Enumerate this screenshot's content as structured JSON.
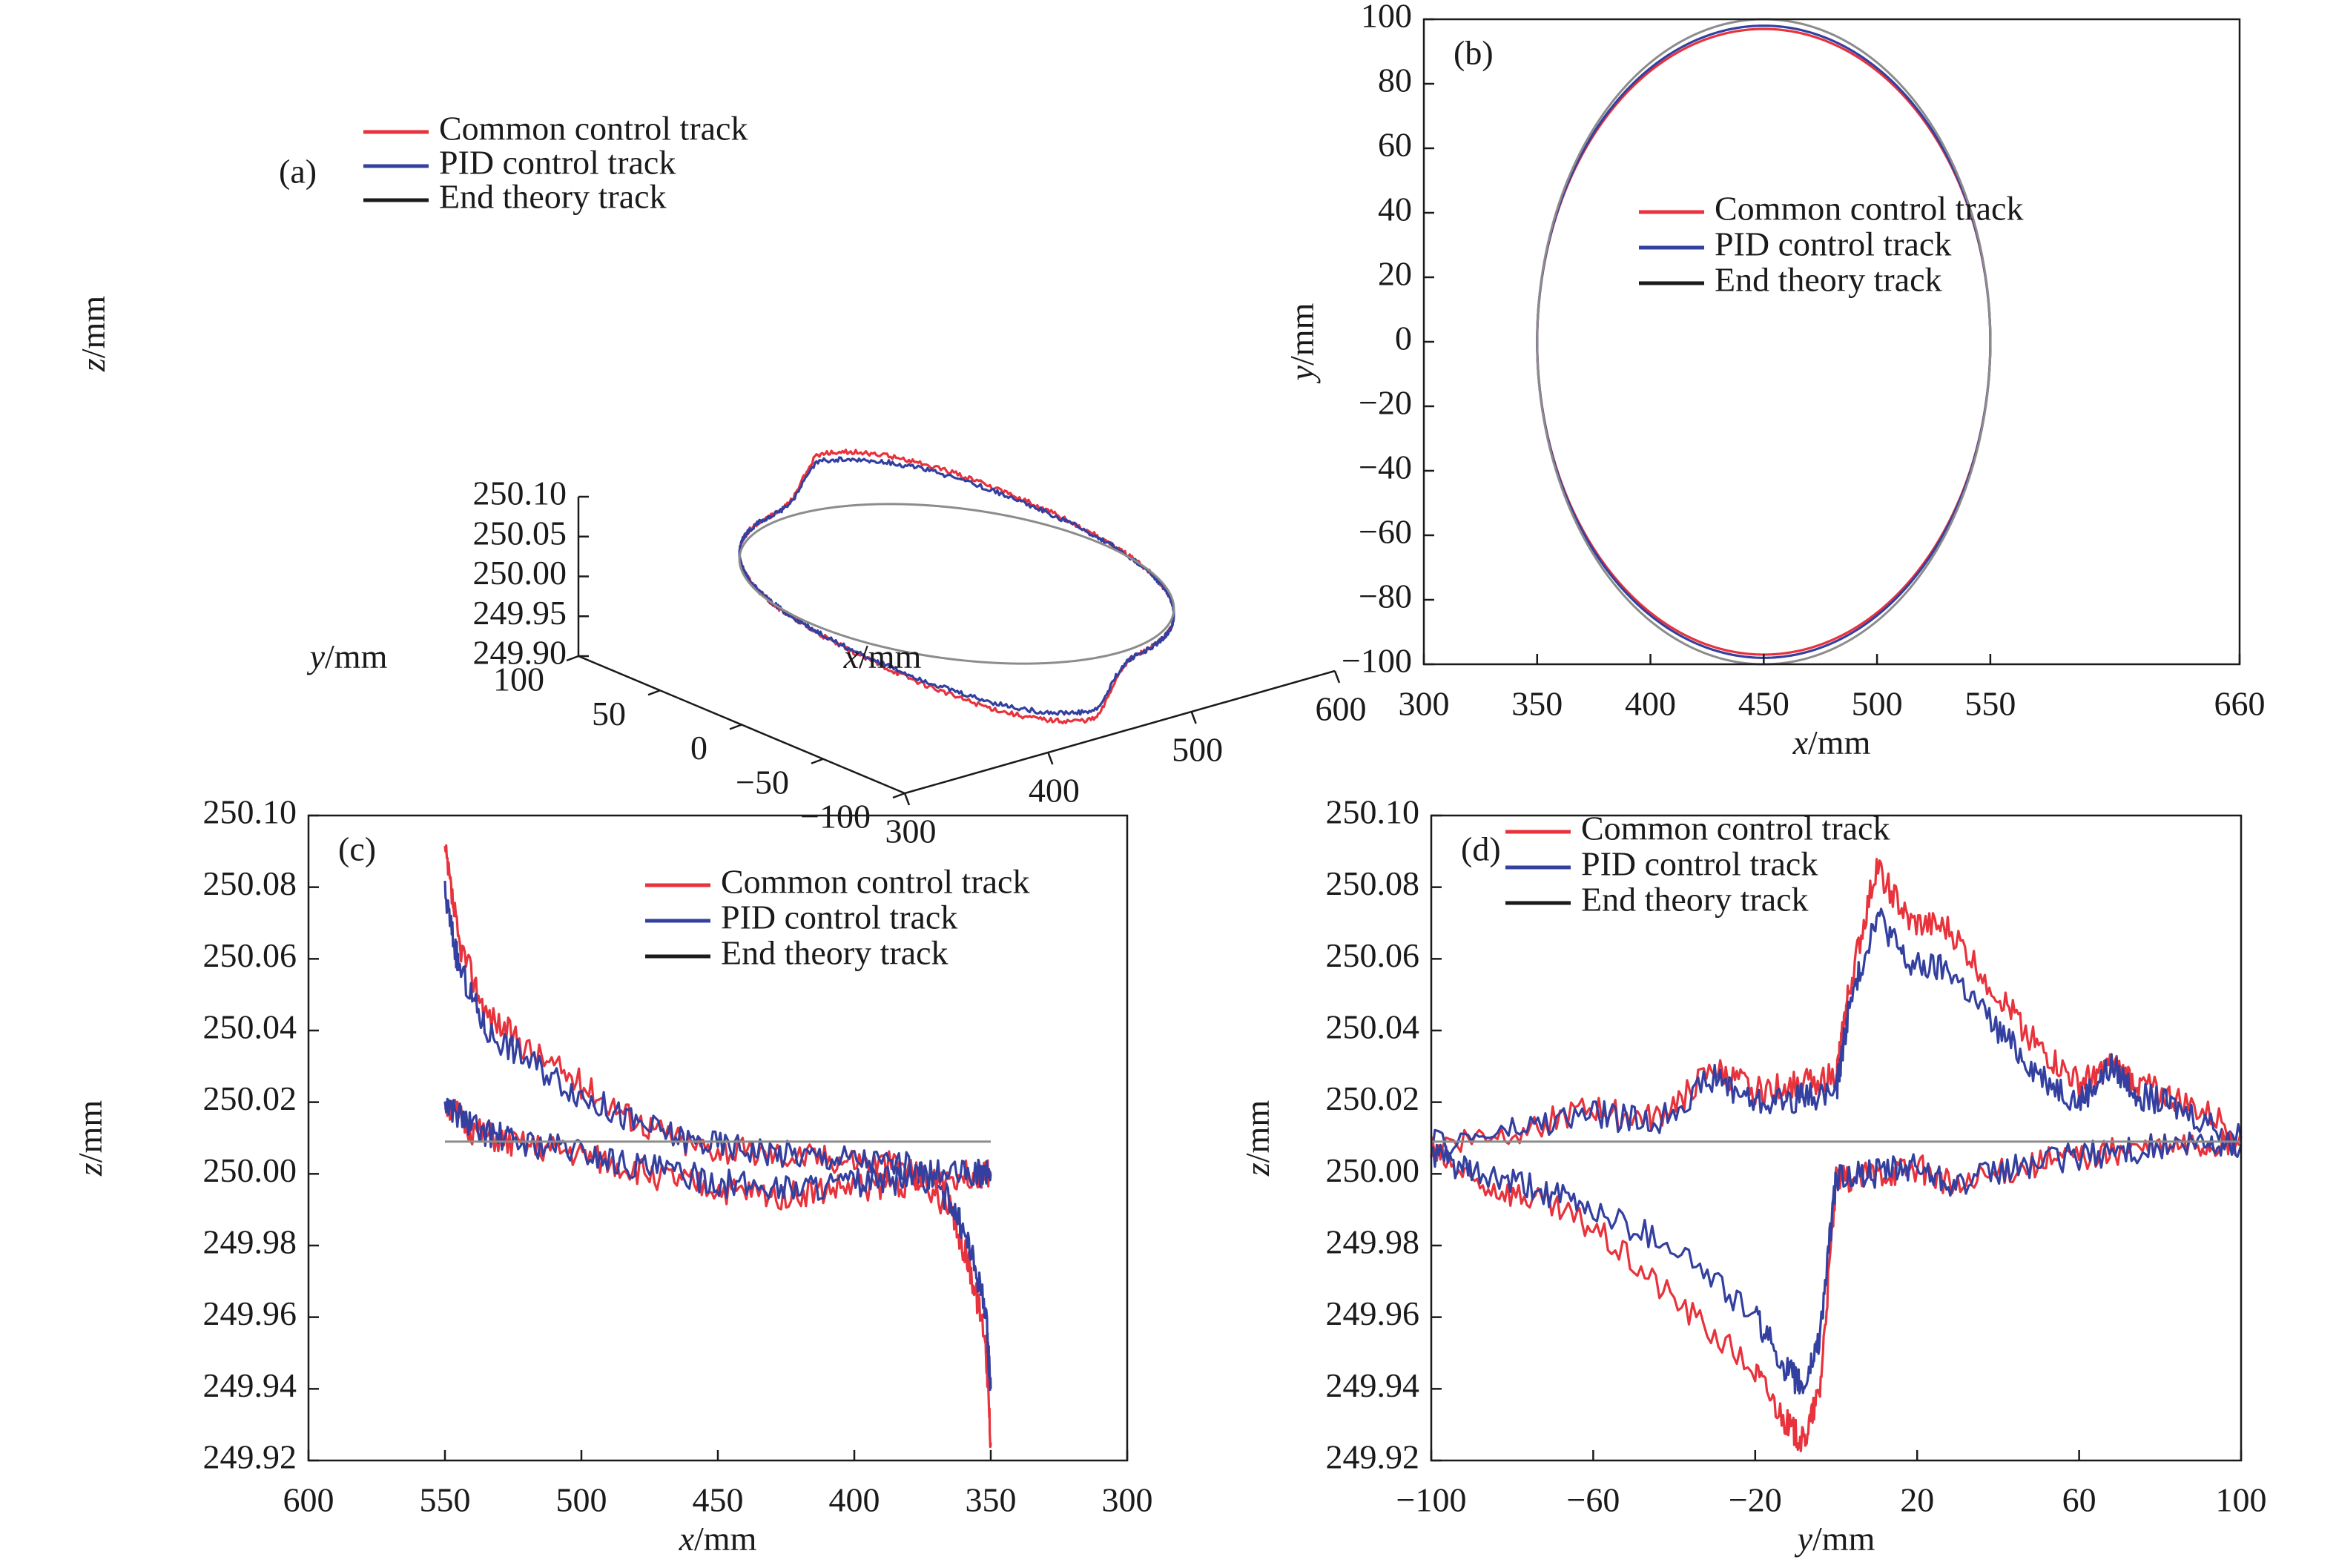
{
  "colors": {
    "common": "#e8323c",
    "pid": "#3340a0",
    "theory": "#1a1a1a",
    "theory_curve": "#8c8c8c",
    "axis": "#1a1a1a"
  },
  "chart_data": [
    {
      "id": "a",
      "type": "line3d",
      "panel_label": "(a)",
      "xlabel": "x/mm",
      "ylabel": "y/mm",
      "zlabel": "z/mm",
      "xlim": [
        300,
        600
      ],
      "ylim": [
        -100,
        100
      ],
      "zlim": [
        249.9,
        250.1
      ],
      "x_ticks": [
        "300",
        "400",
        "500",
        "600"
      ],
      "y_ticks": [
        "100",
        "50",
        "0",
        "−50",
        "−100"
      ],
      "z_ticks": [
        "250.10",
        "250.05",
        "250.00",
        "249.95",
        "249.90"
      ],
      "legend": [
        "Common control track",
        "PID control track",
        "End theory track"
      ],
      "legend_position": "top-left",
      "circle": {
        "center_x": 450,
        "center_y": 0,
        "radius": 100,
        "z": 250.0
      },
      "series": [
        {
          "name": "Common control track",
          "peak_dz": 0.085,
          "peak_angle_deg": 80
        },
        {
          "name": "PID control track",
          "peak_dz": 0.072,
          "peak_angle_deg": 80
        },
        {
          "name": "End theory track",
          "peak_dz": 0.0,
          "peak_angle_deg": 80
        }
      ]
    },
    {
      "id": "b",
      "type": "line",
      "panel_label": "(b)",
      "xlabel": "x/mm",
      "ylabel": "y/mm",
      "xlim": [
        300,
        660
      ],
      "ylim": [
        -100,
        100
      ],
      "x_ticks": [
        "300",
        "350",
        "400",
        "450",
        "500",
        "550",
        "660"
      ],
      "y_ticks": [
        "100",
        "80",
        "60",
        "40",
        "20",
        "0",
        "−20",
        "−40",
        "−60",
        "−80",
        "−100"
      ],
      "legend": [
        "Common control track",
        "PID control track",
        "End theory track"
      ],
      "legend_position": "center",
      "series": [
        {
          "name": "Common control track",
          "center": [
            450,
            0
          ],
          "radius_x": 100,
          "radius_y": 97
        },
        {
          "name": "PID control track",
          "center": [
            450,
            0
          ],
          "radius_x": 100,
          "radius_y": 98
        },
        {
          "name": "End theory track",
          "center": [
            450,
            0
          ],
          "radius_x": 100,
          "radius_y": 100
        }
      ]
    },
    {
      "id": "c",
      "type": "line",
      "panel_label": "(c)",
      "xlabel": "x/mm",
      "ylabel": "z/mm",
      "xlim": [
        600,
        300
      ],
      "ylim": [
        249.92,
        250.1
      ],
      "x_ticks": [
        "600",
        "550",
        "500",
        "450",
        "400",
        "350",
        "300"
      ],
      "y_ticks": [
        "250.10",
        "250.08",
        "250.06",
        "250.04",
        "250.02",
        "250.00",
        "249.98",
        "249.96",
        "249.94",
        "249.92"
      ],
      "legend": [
        "Common control track",
        "PID control track",
        "End theory track"
      ],
      "legend_position": "top-right",
      "series": [
        {
          "name": "Common control track",
          "x": [
            550,
            545,
            535,
            520,
            500,
            480,
            460,
            440,
            420,
            400,
            380,
            365,
            358,
            352,
            350
          ],
          "y": [
            250.09,
            250.065,
            250.045,
            250.035,
            250.025,
            250.015,
            250.008,
            250.006,
            250.005,
            250.004,
            250.002,
            249.99,
            249.975,
            249.955,
            249.925
          ]
        },
        {
          "name": "PID control track",
          "x": [
            550,
            545,
            535,
            520,
            500,
            480,
            460,
            440,
            420,
            400,
            380,
            365,
            358,
            352,
            350
          ],
          "y": [
            250.078,
            250.058,
            250.04,
            250.032,
            250.022,
            250.014,
            250.009,
            250.007,
            250.005,
            250.004,
            250.002,
            249.993,
            249.98,
            249.963,
            249.94
          ]
        },
        {
          "name": "Common control track",
          "x": [
            550,
            540,
            525,
            505,
            485,
            465,
            445,
            425,
            405,
            385,
            370,
            355,
            350
          ],
          "y": [
            250.02,
            250.012,
            250.008,
            250.006,
            250.002,
            249.998,
            249.995,
            249.994,
            249.996,
            249.997,
            249.999,
            250.0,
            250.0
          ]
        },
        {
          "name": "PID control track",
          "x": [
            550,
            540,
            525,
            505,
            485,
            465,
            445,
            425,
            405,
            385,
            370,
            355,
            350
          ],
          "y": [
            250.02,
            250.013,
            250.009,
            250.007,
            250.003,
            250.0,
            249.997,
            249.996,
            249.997,
            249.998,
            250.0,
            250.0,
            250.0
          ]
        },
        {
          "name": "End theory track",
          "x": [
            550,
            350
          ],
          "y": [
            250.009,
            250.009
          ]
        }
      ]
    },
    {
      "id": "d",
      "type": "line",
      "panel_label": "(d)",
      "xlabel": "y/mm",
      "ylabel": "z/mm",
      "xlim": [
        -100,
        100
      ],
      "ylim": [
        249.92,
        250.1
      ],
      "x_ticks": [
        "−100",
        "−60",
        "−20",
        "20",
        "60",
        "100"
      ],
      "y_ticks": [
        "250.10",
        "250.08",
        "250.06",
        "250.04",
        "250.02",
        "250.00",
        "249.98",
        "249.96",
        "249.94",
        "249.92"
      ],
      "legend": [
        "Common control track",
        "PID control track",
        "End theory track"
      ],
      "legend_position": "top-left",
      "series": [
        {
          "name": "Common control track",
          "x": [
            -100,
            -80,
            -60,
            -45,
            -30,
            -20,
            -10,
            0,
            3,
            10,
            18,
            28,
            40,
            50,
            60,
            68,
            75,
            85,
            100
          ],
          "y": [
            250.008,
            250.012,
            250.018,
            250.015,
            250.029,
            250.023,
            250.025,
            250.027,
            250.05,
            250.086,
            250.07,
            250.068,
            250.05,
            250.035,
            250.025,
            250.03,
            250.025,
            250.02,
            250.012
          ]
        },
        {
          "name": "PID control track",
          "x": [
            -100,
            -80,
            -60,
            -45,
            -30,
            -20,
            -10,
            0,
            3,
            10,
            18,
            28,
            40,
            50,
            60,
            68,
            75,
            85,
            100
          ],
          "y": [
            250.008,
            250.012,
            250.017,
            250.014,
            250.027,
            250.02,
            250.021,
            250.023,
            250.045,
            250.073,
            250.058,
            250.057,
            250.04,
            250.028,
            250.02,
            250.03,
            250.022,
            250.018,
            250.01
          ]
        },
        {
          "name": "Common control track",
          "x": [
            -100,
            -90,
            -75,
            -60,
            -40,
            -20,
            -12,
            -8,
            -4,
            0,
            10,
            20,
            30,
            45,
            60,
            75,
            90,
            100
          ],
          "y": [
            250.006,
            249.998,
            249.993,
            249.985,
            249.965,
            249.945,
            249.93,
            249.925,
            249.94,
            249.998,
            250.0,
            250.002,
            249.996,
            250.002,
            250.005,
            250.007,
            250.008,
            250.008
          ]
        },
        {
          "name": "PID control track",
          "x": [
            -100,
            -90,
            -75,
            -60,
            -40,
            -20,
            -12,
            -8,
            -4,
            0,
            10,
            20,
            30,
            45,
            60,
            75,
            90,
            100
          ],
          "y": [
            250.006,
            250.0,
            249.996,
            249.99,
            249.98,
            249.96,
            249.945,
            249.94,
            249.955,
            249.999,
            250.0,
            250.002,
            249.997,
            250.002,
            250.005,
            250.007,
            250.008,
            250.008
          ]
        },
        {
          "name": "End theory track",
          "x": [
            -100,
            100
          ],
          "y": [
            250.009,
            250.009
          ]
        }
      ]
    }
  ]
}
